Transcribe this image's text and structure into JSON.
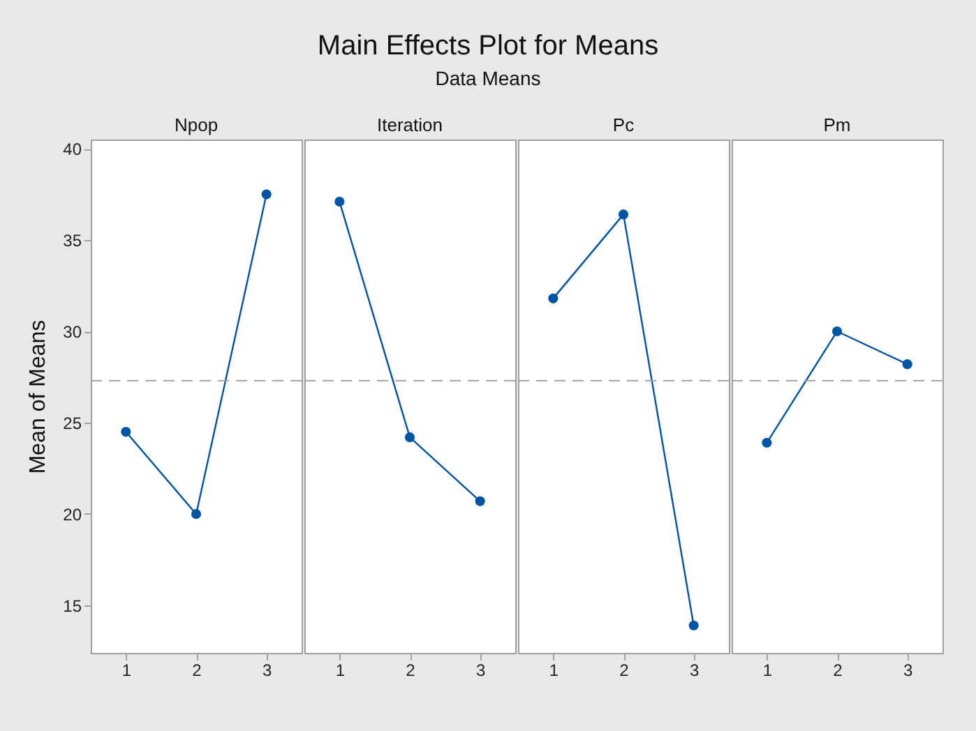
{
  "chart_data": [
    {
      "type": "other",
      "title": "Main Effects Plot for Means",
      "subtitle": "Data Means"
    },
    {
      "type": "line",
      "title": "Npop",
      "ylabel": "Mean of Means",
      "categories": [
        "1",
        "2",
        "3"
      ],
      "series": [
        {
          "color": "#0054a6",
          "values": [
            24.5,
            20.0,
            37.5
          ]
        }
      ],
      "ylim": [
        12.4,
        40.5
      ],
      "yticks": [
        15,
        20,
        25,
        30,
        35,
        40
      ],
      "marker": "circle",
      "line_style": "solid",
      "grid": false,
      "ref_lines": [
        {
          "axis": "y",
          "value": 27.3,
          "color": "#a0a0a0",
          "line_style": "dashed"
        }
      ]
    },
    {
      "type": "line",
      "title": "Iteration",
      "categories": [
        "1",
        "2",
        "3"
      ],
      "series": [
        {
          "color": "#0054a6",
          "values": [
            37.1,
            24.2,
            20.7
          ]
        }
      ],
      "ylim": [
        12.4,
        40.5
      ],
      "yticks": [
        15,
        20,
        25,
        30,
        35,
        40
      ],
      "tick_labels": "x",
      "marker": "circle",
      "line_style": "solid",
      "grid": false,
      "ref_lines": [
        {
          "axis": "y",
          "value": 27.3,
          "color": "#a0a0a0",
          "line_style": "dashed"
        }
      ]
    },
    {
      "type": "line",
      "title": "Pc",
      "categories": [
        "1",
        "2",
        "3"
      ],
      "series": [
        {
          "color": "#0054a6",
          "values": [
            31.8,
            36.4,
            13.9
          ]
        }
      ],
      "ylim": [
        12.4,
        40.5
      ],
      "yticks": [
        15,
        20,
        25,
        30,
        35,
        40
      ],
      "tick_labels": "x",
      "marker": "circle",
      "line_style": "solid",
      "grid": false,
      "ref_lines": [
        {
          "axis": "y",
          "value": 27.3,
          "color": "#a0a0a0",
          "line_style": "dashed"
        }
      ]
    },
    {
      "type": "line",
      "title": "Pm",
      "categories": [
        "1",
        "2",
        "3"
      ],
      "series": [
        {
          "color": "#0054a6",
          "values": [
            23.9,
            30.0,
            28.2
          ]
        }
      ],
      "ylim": [
        12.4,
        40.5
      ],
      "yticks": [
        15,
        20,
        25,
        30,
        35,
        40
      ],
      "tick_labels": "x",
      "marker": "circle",
      "line_style": "solid",
      "grid": false,
      "ref_lines": [
        {
          "axis": "y",
          "value": 27.3,
          "color": "#a0a0a0",
          "line_style": "dashed"
        }
      ]
    }
  ]
}
